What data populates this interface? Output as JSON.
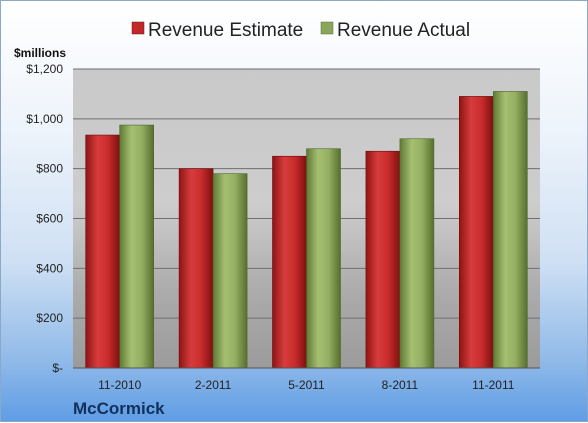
{
  "chart_data": {
    "type": "bar",
    "title": "",
    "unit_label": "$millions",
    "xlabel": "",
    "ylabel": "",
    "categories": [
      "11-2010",
      "2-2011",
      "5-2011",
      "8-2011",
      "11-2011"
    ],
    "series": [
      {
        "name": "Revenue Estimate",
        "values": [
          935,
          800,
          850,
          870,
          1090
        ]
      },
      {
        "name": "Revenue Actual",
        "values": [
          975,
          780,
          880,
          920,
          1110
        ]
      }
    ],
    "ylim": [
      0,
      1200
    ],
    "yticks": [
      0,
      200,
      400,
      600,
      800,
      1000,
      1200
    ],
    "ytick_labels": [
      "$-",
      "$200",
      "$400",
      "$600",
      "$800",
      "$1,000",
      "$1,200"
    ],
    "grid": true,
    "legend_position": "top",
    "colors": {
      "Revenue Estimate": "#c0282a",
      "Revenue Actual": "#8aa65a"
    },
    "footer_label": "McCormick"
  }
}
